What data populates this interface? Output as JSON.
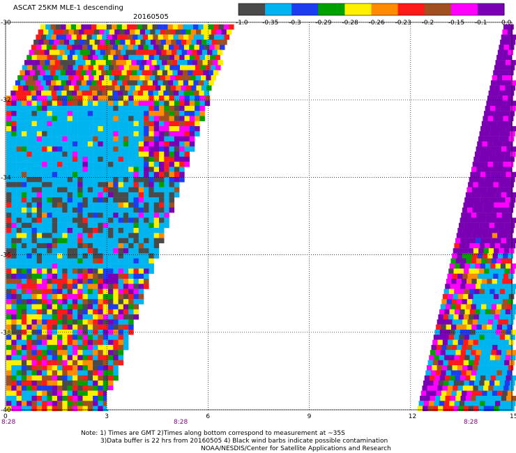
{
  "title": "ASCAT 25KM MLE-1 descending",
  "date": "20160505",
  "colorbar": {
    "colors": [
      "#4a4a4a",
      "#00b4f0",
      "#1c3cf0",
      "#00a000",
      "#fff000",
      "#ff8c00",
      "#ff1a1a",
      "#a05020",
      "#ff00ff",
      "#7a00b4"
    ],
    "labels": [
      "-1.0",
      "-0.35",
      "-0.3",
      "-0.29",
      "-0.28",
      "-0.26",
      "-0.23",
      "-0.2",
      "-0.15",
      "-0.1",
      "0.0"
    ]
  },
  "axes": {
    "x_ticks": [
      "0",
      "3",
      "6",
      "9",
      "12",
      "15"
    ],
    "y_ticks": [
      "-30",
      "-32",
      "-34",
      "-36",
      "-38",
      "-40"
    ],
    "xlim": [
      0,
      15
    ],
    "ylim": [
      -40,
      -30
    ],
    "grid": true
  },
  "pass_times": [
    "8:28",
    "8:28",
    "8:28"
  ],
  "notes": [
    "Note: 1) Times are GMT 2)Times along bottom correspond to measurement at ~35S",
    "3)Data buffer is 22 hrs from 20160505 4) Black wind barbs indicate possible contamination",
    "NOAA/NESDIS/Center for Satellite Applications and Research"
  ]
}
